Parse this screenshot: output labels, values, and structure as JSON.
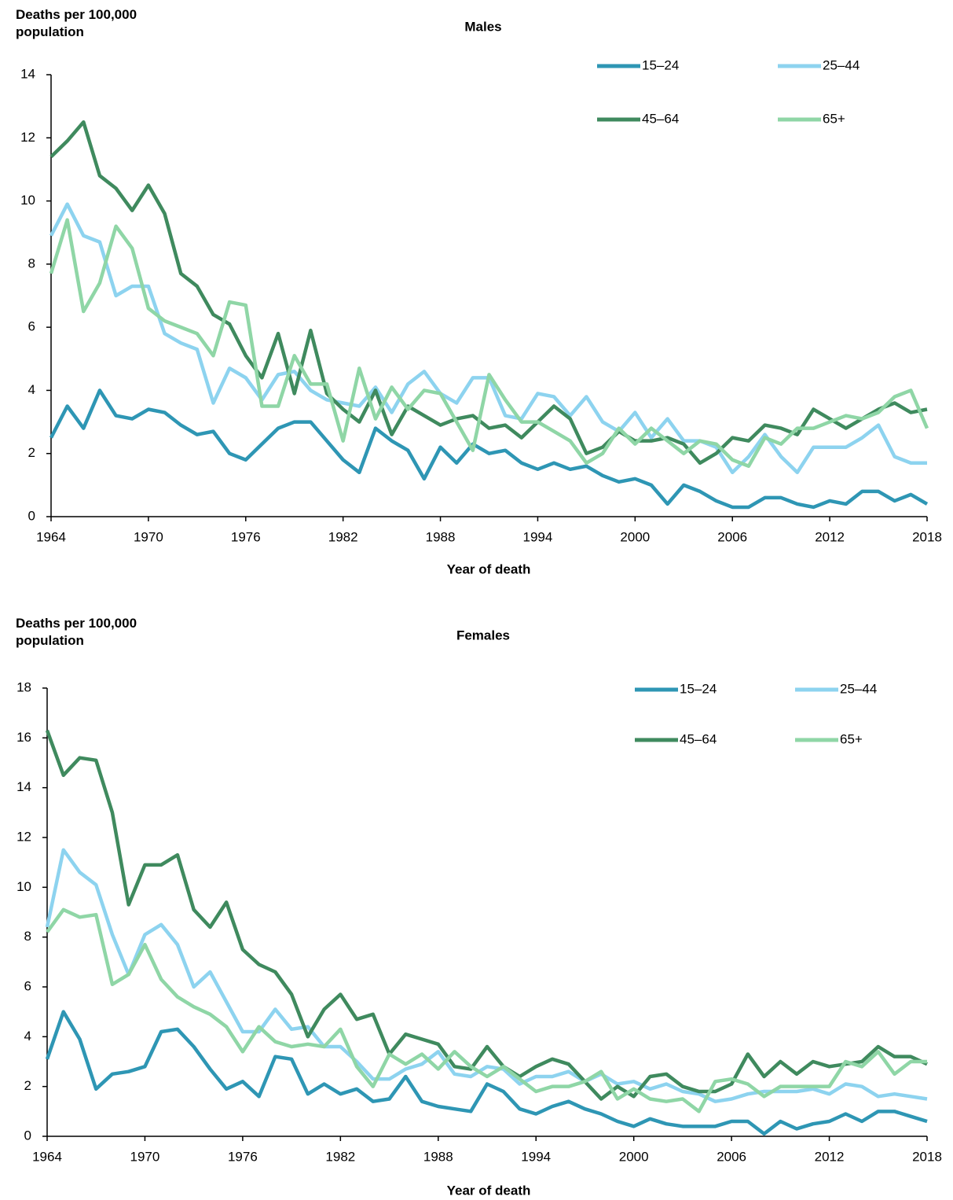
{
  "chart_data": [
    {
      "type": "line",
      "title": "Males",
      "y_label": "Deaths per 100,000 population",
      "x_label": "Year of death",
      "x": [
        1964,
        1965,
        1966,
        1967,
        1968,
        1969,
        1970,
        1971,
        1972,
        1973,
        1974,
        1975,
        1976,
        1977,
        1978,
        1979,
        1980,
        1981,
        1982,
        1983,
        1984,
        1985,
        1986,
        1987,
        1988,
        1989,
        1990,
        1991,
        1992,
        1993,
        1994,
        1995,
        1996,
        1997,
        1998,
        1999,
        2000,
        2001,
        2002,
        2003,
        2004,
        2005,
        2006,
        2007,
        2008,
        2009,
        2010,
        2011,
        2012,
        2013,
        2014,
        2015,
        2016,
        2017,
        2018
      ],
      "xlim": [
        1964,
        2018
      ],
      "xticks": [
        1964,
        1970,
        1976,
        1982,
        1988,
        1994,
        2000,
        2006,
        2012,
        2018
      ],
      "ylim": [
        0,
        14
      ],
      "yticks": [
        0,
        2,
        4,
        6,
        8,
        10,
        12,
        14
      ],
      "legend": "upper right",
      "series": [
        {
          "name": "15–24",
          "color": "#2e96b4",
          "values": [
            2.5,
            3.5,
            2.8,
            4.0,
            3.2,
            3.1,
            3.4,
            3.3,
            2.9,
            2.6,
            2.7,
            2.0,
            1.8,
            2.3,
            2.8,
            3.0,
            3.0,
            2.4,
            1.8,
            1.4,
            2.8,
            2.4,
            2.1,
            1.2,
            2.2,
            1.7,
            2.3,
            2.0,
            2.1,
            1.7,
            1.5,
            1.7,
            1.5,
            1.6,
            1.3,
            1.1,
            1.2,
            1.0,
            0.4,
            1.0,
            0.8,
            0.5,
            0.3,
            0.3,
            0.6,
            0.6,
            0.4,
            0.3,
            0.5,
            0.4,
            0.8,
            0.8,
            0.5,
            0.7,
            0.4
          ]
        },
        {
          "name": "25–44",
          "color": "#8dd3ef",
          "values": [
            8.9,
            9.9,
            8.9,
            8.7,
            7.0,
            7.3,
            7.3,
            5.8,
            5.5,
            5.3,
            3.6,
            4.7,
            4.4,
            3.7,
            4.5,
            4.6,
            4.0,
            3.7,
            3.6,
            3.5,
            4.1,
            3.3,
            4.2,
            4.6,
            3.9,
            3.6,
            4.4,
            4.4,
            3.2,
            3.1,
            3.9,
            3.8,
            3.2,
            3.8,
            3.0,
            2.7,
            3.3,
            2.5,
            3.1,
            2.4,
            2.4,
            2.2,
            1.4,
            1.9,
            2.6,
            1.9,
            1.4,
            2.2,
            2.2,
            2.2,
            2.5,
            2.9,
            1.9,
            1.7,
            1.7
          ]
        },
        {
          "name": "45–64",
          "color": "#3f8a5e",
          "values": [
            11.4,
            11.9,
            12.5,
            10.8,
            10.4,
            9.7,
            10.5,
            9.6,
            7.7,
            7.3,
            6.4,
            6.1,
            5.1,
            4.4,
            5.8,
            3.9,
            5.9,
            3.9,
            3.4,
            3.0,
            4.0,
            2.6,
            3.5,
            3.2,
            2.9,
            3.1,
            3.2,
            2.8,
            2.9,
            2.5,
            3.0,
            3.5,
            3.1,
            2.0,
            2.2,
            2.7,
            2.4,
            2.4,
            2.5,
            2.3,
            1.7,
            2.0,
            2.5,
            2.4,
            2.9,
            2.8,
            2.6,
            3.4,
            3.1,
            2.8,
            3.1,
            3.4,
            3.6,
            3.3,
            3.4
          ]
        },
        {
          "name": "65+",
          "color": "#8fd6a6",
          "values": [
            7.7,
            9.4,
            6.5,
            7.4,
            9.2,
            8.5,
            6.6,
            6.2,
            6.0,
            5.8,
            5.1,
            6.8,
            6.7,
            3.5,
            3.5,
            5.1,
            4.2,
            4.2,
            2.4,
            4.7,
            3.1,
            4.1,
            3.4,
            4.0,
            3.9,
            3.0,
            2.1,
            4.5,
            3.7,
            3.0,
            3.0,
            2.7,
            2.4,
            1.7,
            2.0,
            2.8,
            2.3,
            2.8,
            2.4,
            2.0,
            2.4,
            2.3,
            1.8,
            1.6,
            2.5,
            2.3,
            2.8,
            2.8,
            3.0,
            3.2,
            3.1,
            3.3,
            3.8,
            4.0,
            2.8
          ]
        }
      ]
    },
    {
      "type": "line",
      "title": "Females",
      "y_label": "Deaths per 100,000 population",
      "x_label": "Year of death",
      "x": [
        1964,
        1965,
        1966,
        1967,
        1968,
        1969,
        1970,
        1971,
        1972,
        1973,
        1974,
        1975,
        1976,
        1977,
        1978,
        1979,
        1980,
        1981,
        1982,
        1983,
        1984,
        1985,
        1986,
        1987,
        1988,
        1989,
        1990,
        1991,
        1992,
        1993,
        1994,
        1995,
        1996,
        1997,
        1998,
        1999,
        2000,
        2001,
        2002,
        2003,
        2004,
        2005,
        2006,
        2007,
        2008,
        2009,
        2010,
        2011,
        2012,
        2013,
        2014,
        2015,
        2016,
        2017,
        2018
      ],
      "xlim": [
        1964,
        2018
      ],
      "xticks": [
        1964,
        1970,
        1976,
        1982,
        1988,
        1994,
        2000,
        2006,
        2012,
        2018
      ],
      "ylim": [
        0,
        18
      ],
      "yticks": [
        0,
        2,
        4,
        6,
        8,
        10,
        12,
        14,
        16,
        18
      ],
      "legend": "upper right",
      "series": [
        {
          "name": "15–24",
          "color": "#2e96b4",
          "values": [
            3.1,
            5.0,
            3.9,
            1.9,
            2.5,
            2.6,
            2.8,
            4.2,
            4.3,
            3.6,
            2.7,
            1.9,
            2.2,
            1.6,
            3.2,
            3.1,
            1.7,
            2.1,
            1.7,
            1.9,
            1.4,
            1.5,
            2.4,
            1.4,
            1.2,
            1.1,
            1.0,
            2.1,
            1.8,
            1.1,
            0.9,
            1.2,
            1.4,
            1.1,
            0.9,
            0.6,
            0.4,
            0.7,
            0.5,
            0.4,
            0.4,
            0.4,
            0.6,
            0.6,
            0.1,
            0.6,
            0.3,
            0.5,
            0.6,
            0.9,
            0.6,
            1.0,
            1.0,
            0.8,
            0.6
          ]
        },
        {
          "name": "25–44",
          "color": "#8dd3ef",
          "values": [
            8.4,
            11.5,
            10.6,
            10.1,
            8.1,
            6.5,
            8.1,
            8.5,
            7.7,
            6.0,
            6.6,
            5.4,
            4.2,
            4.2,
            5.1,
            4.3,
            4.4,
            3.6,
            3.6,
            3.0,
            2.3,
            2.3,
            2.7,
            2.9,
            3.4,
            2.5,
            2.4,
            2.8,
            2.7,
            2.1,
            2.4,
            2.4,
            2.6,
            2.2,
            2.5,
            2.1,
            2.2,
            1.9,
            2.1,
            1.8,
            1.7,
            1.4,
            1.5,
            1.7,
            1.8,
            1.8,
            1.8,
            1.9,
            1.7,
            2.1,
            2.0,
            1.6,
            1.7,
            1.6,
            1.5
          ]
        },
        {
          "name": "45–64",
          "color": "#3f8a5e",
          "values": [
            16.3,
            14.5,
            15.2,
            15.1,
            13.0,
            9.3,
            10.9,
            10.9,
            11.3,
            9.1,
            8.4,
            9.4,
            7.5,
            6.9,
            6.6,
            5.7,
            4.0,
            5.1,
            5.7,
            4.7,
            4.9,
            3.3,
            4.1,
            3.9,
            3.7,
            2.8,
            2.7,
            3.6,
            2.8,
            2.4,
            2.8,
            3.1,
            2.9,
            2.2,
            1.5,
            2.0,
            1.6,
            2.4,
            2.5,
            2.0,
            1.8,
            1.8,
            2.1,
            3.3,
            2.4,
            3.0,
            2.5,
            3.0,
            2.8,
            2.9,
            3.0,
            3.6,
            3.2,
            3.2,
            2.9
          ]
        },
        {
          "name": "65+",
          "color": "#8fd6a6",
          "values": [
            8.2,
            9.1,
            8.8,
            8.9,
            6.1,
            6.5,
            7.7,
            6.3,
            5.6,
            5.2,
            4.9,
            4.4,
            3.4,
            4.4,
            3.8,
            3.6,
            3.7,
            3.6,
            4.3,
            2.8,
            2.0,
            3.3,
            2.9,
            3.3,
            2.7,
            3.4,
            2.8,
            2.4,
            2.8,
            2.3,
            1.8,
            2.0,
            2.0,
            2.2,
            2.6,
            1.5,
            1.9,
            1.5,
            1.4,
            1.5,
            1.0,
            2.2,
            2.3,
            2.1,
            1.6,
            2.0,
            2.0,
            2.0,
            2.0,
            3.0,
            2.8,
            3.4,
            2.5,
            3.0,
            3.0
          ]
        }
      ]
    }
  ]
}
